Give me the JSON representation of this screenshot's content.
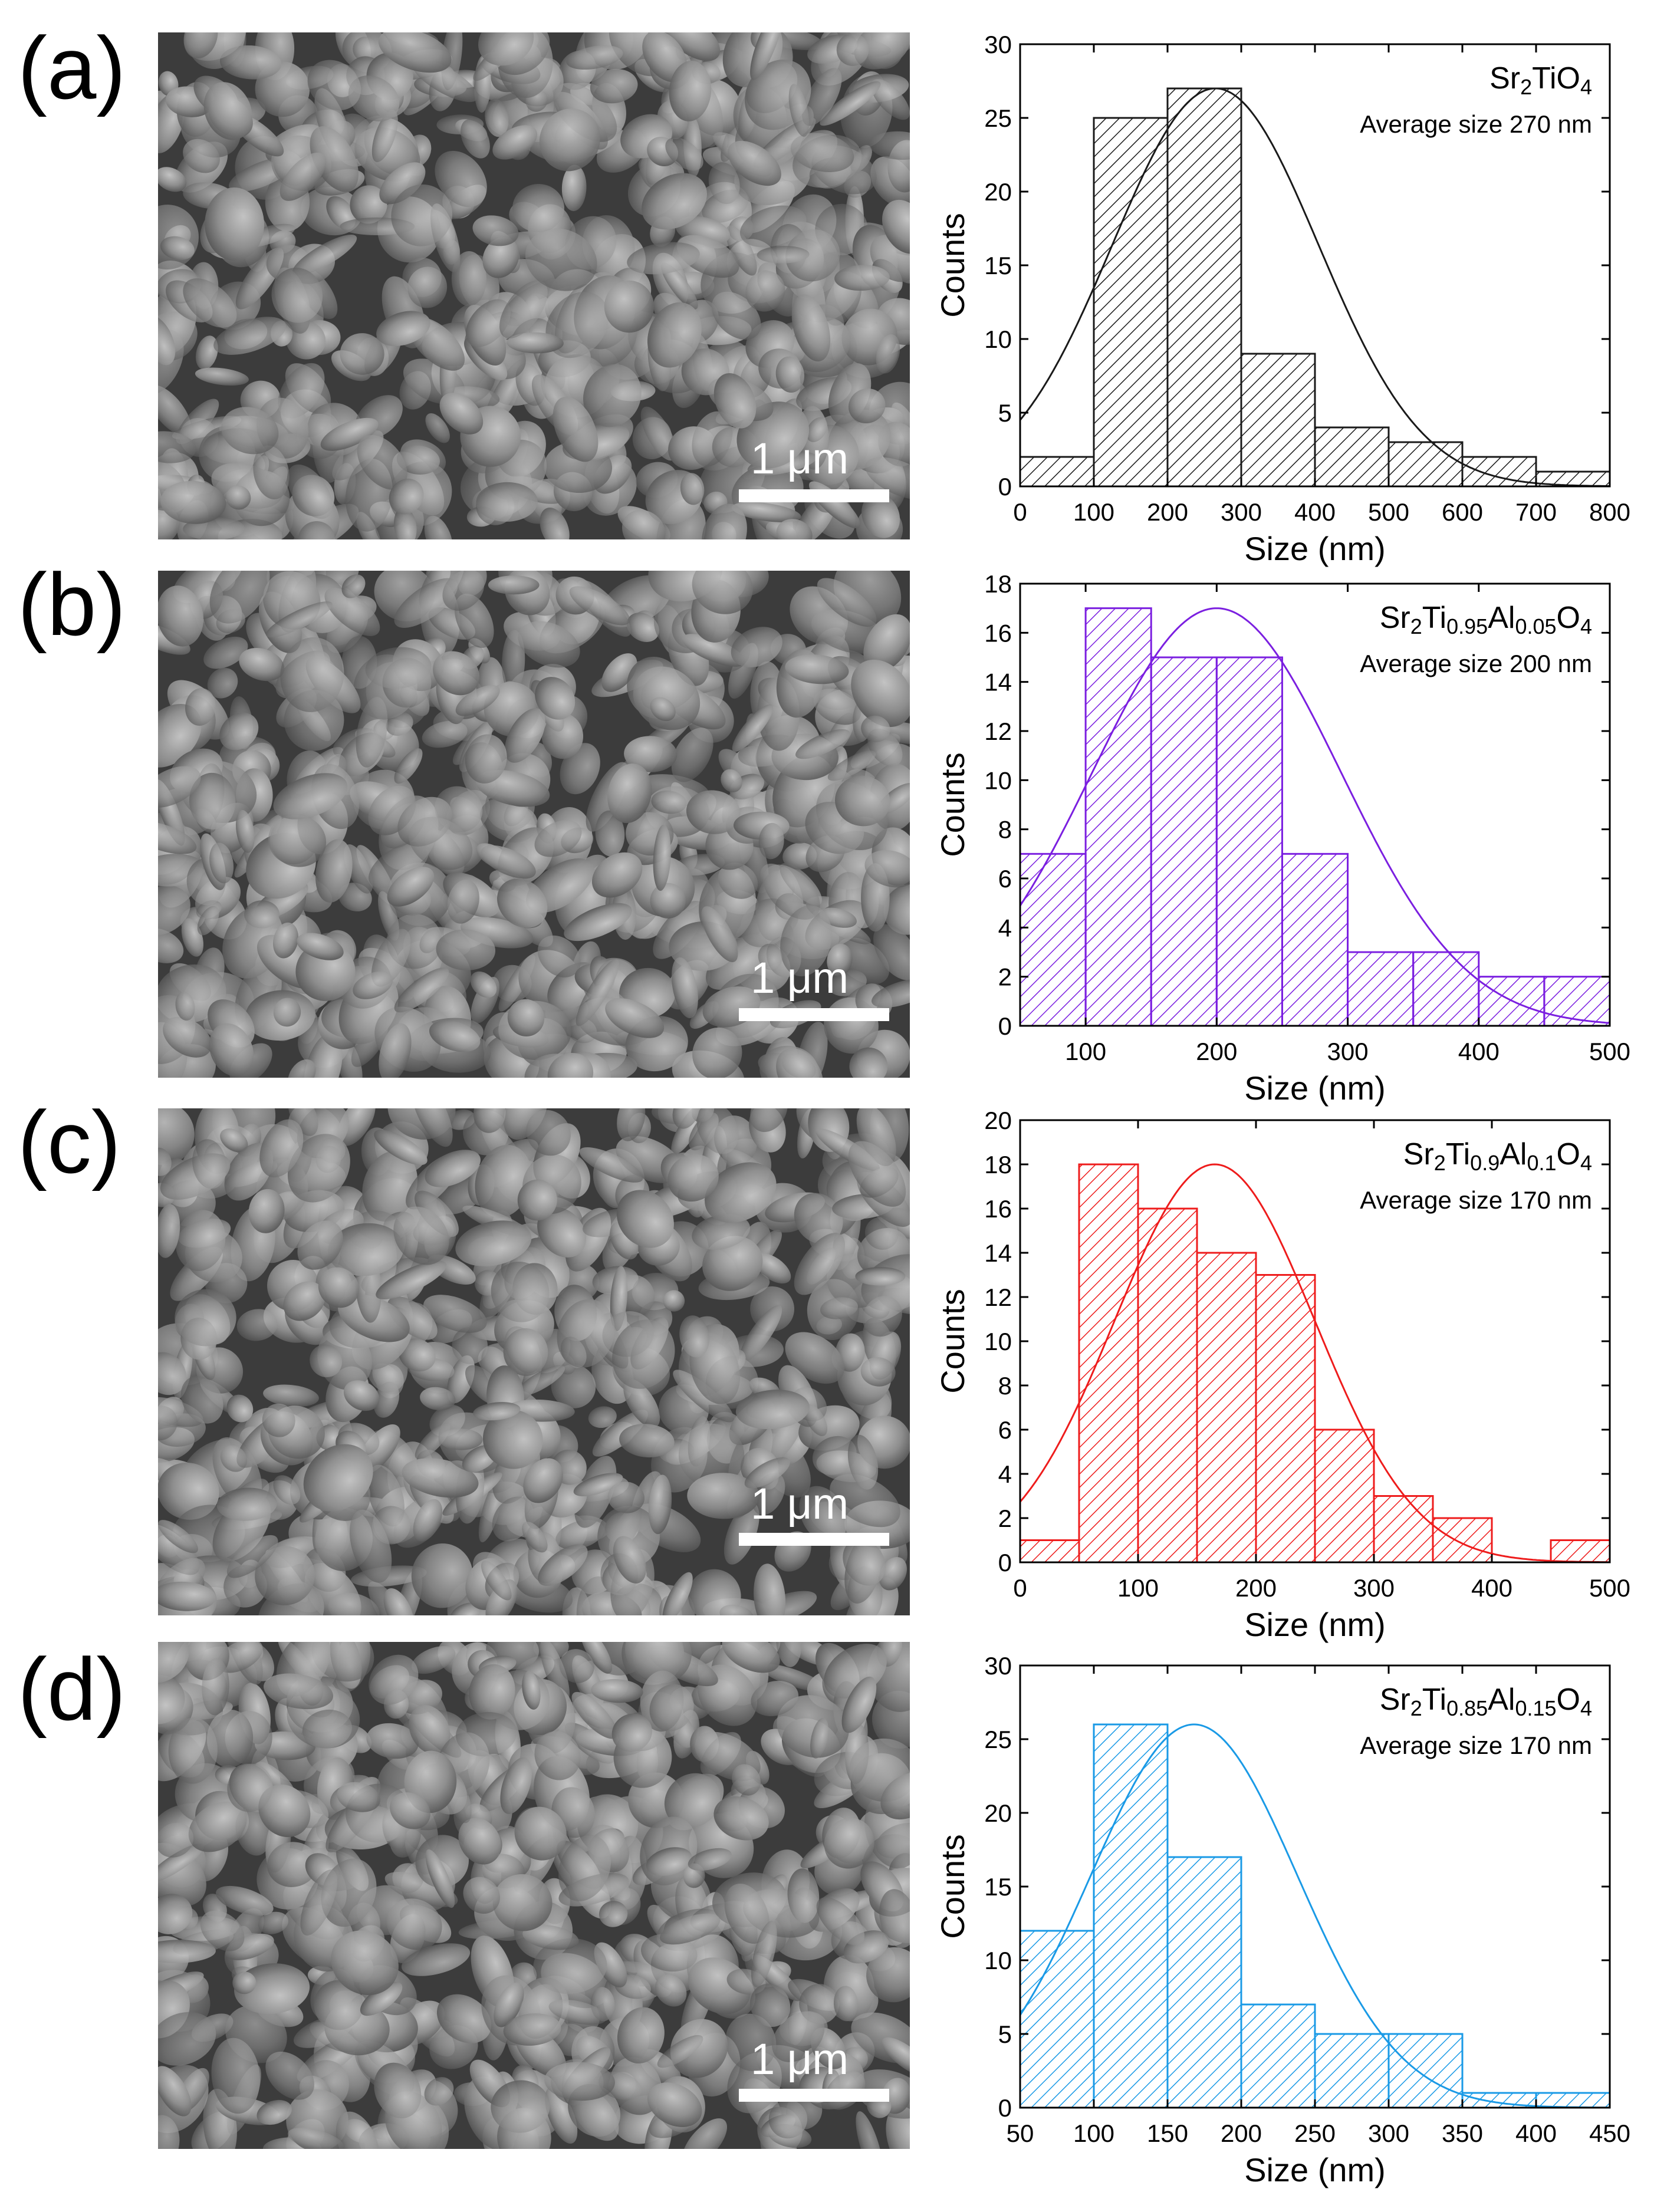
{
  "panels": [
    {
      "label": "(a)",
      "scale_bar": "1 μm"
    },
    {
      "label": "(b)",
      "scale_bar": "1 μm"
    },
    {
      "label": "(c)",
      "scale_bar": "1 μm"
    },
    {
      "label": "(d)",
      "scale_bar": "1 μm"
    }
  ],
  "chart_data": [
    {
      "type": "bar",
      "panel": "(a)",
      "title": "",
      "annotation": {
        "formula": [
          [
            "Sr",
            "n"
          ],
          [
            "2",
            "s"
          ],
          [
            "TiO",
            "n"
          ],
          [
            "4",
            "s"
          ]
        ],
        "text": "Average size 270 nm"
      },
      "xlabel": "Size (nm)",
      "ylabel": "Counts",
      "xlim": [
        0,
        800
      ],
      "ylim": [
        0,
        30
      ],
      "xticks": [
        0,
        100,
        200,
        300,
        400,
        500,
        600,
        700,
        800
      ],
      "yticks": [
        0,
        5,
        10,
        15,
        20,
        25,
        30
      ],
      "bin_width": 100,
      "bins": [
        {
          "start": 0,
          "count": 2
        },
        {
          "start": 100,
          "count": 25
        },
        {
          "start": 200,
          "count": 27
        },
        {
          "start": 300,
          "count": 9
        },
        {
          "start": 400,
          "count": 4
        },
        {
          "start": 500,
          "count": 3
        },
        {
          "start": 600,
          "count": 2
        },
        {
          "start": 700,
          "count": 1
        }
      ],
      "fit": {
        "type": "gaussian",
        "center": 265,
        "peak": 27,
        "sigma": 140
      },
      "color": "#1a1a1a",
      "grid": false
    },
    {
      "type": "bar",
      "panel": "(b)",
      "title": "",
      "annotation": {
        "formula": [
          [
            "Sr",
            "n"
          ],
          [
            "2",
            "s"
          ],
          [
            "Ti",
            "n"
          ],
          [
            "0.95",
            "s"
          ],
          [
            "Al",
            "n"
          ],
          [
            "0.05",
            "s"
          ],
          [
            "O",
            "n"
          ],
          [
            "4",
            "s"
          ]
        ],
        "text": "Average size 200 nm"
      },
      "xlabel": "Size (nm)",
      "ylabel": "Counts",
      "xlim": [
        50,
        500
      ],
      "ylim": [
        0,
        18
      ],
      "xticks": [
        100,
        200,
        300,
        400,
        500
      ],
      "yticks": [
        0,
        2,
        4,
        6,
        8,
        10,
        12,
        14,
        16,
        18
      ],
      "bin_width": 50,
      "bins": [
        {
          "start": 50,
          "count": 7
        },
        {
          "start": 100,
          "count": 17
        },
        {
          "start": 150,
          "count": 15
        },
        {
          "start": 200,
          "count": 15
        },
        {
          "start": 250,
          "count": 7
        },
        {
          "start": 300,
          "count": 3
        },
        {
          "start": 350,
          "count": 3
        },
        {
          "start": 400,
          "count": 2
        },
        {
          "start": 450,
          "count": 2
        }
      ],
      "fit": {
        "type": "gaussian",
        "center": 200,
        "peak": 17,
        "sigma": 95
      },
      "color": "#7b1fe0",
      "grid": false
    },
    {
      "type": "bar",
      "panel": "(c)",
      "title": "",
      "annotation": {
        "formula": [
          [
            "Sr",
            "n"
          ],
          [
            "2",
            "s"
          ],
          [
            "Ti",
            "n"
          ],
          [
            "0.9",
            "s"
          ],
          [
            "Al",
            "n"
          ],
          [
            "0.1",
            "s"
          ],
          [
            "O",
            "n"
          ],
          [
            "4",
            "s"
          ]
        ],
        "text": "Average size 170 nm"
      },
      "xlabel": "Size (nm)",
      "ylabel": "Counts",
      "xlim": [
        0,
        500
      ],
      "ylim": [
        0,
        20
      ],
      "xticks": [
        0,
        100,
        200,
        300,
        400,
        500
      ],
      "yticks": [
        0,
        2,
        4,
        6,
        8,
        10,
        12,
        14,
        16,
        18,
        20
      ],
      "bin_width": 50,
      "bins": [
        {
          "start": 0,
          "count": 1
        },
        {
          "start": 50,
          "count": 18
        },
        {
          "start": 100,
          "count": 16
        },
        {
          "start": 150,
          "count": 14
        },
        {
          "start": 200,
          "count": 13
        },
        {
          "start": 250,
          "count": 6
        },
        {
          "start": 300,
          "count": 3
        },
        {
          "start": 350,
          "count": 2
        },
        {
          "start": 400,
          "count": 0
        },
        {
          "start": 450,
          "count": 1
        }
      ],
      "fit": {
        "type": "gaussian",
        "center": 165,
        "peak": 18,
        "sigma": 85
      },
      "color": "#ee1c1c",
      "grid": false
    },
    {
      "type": "bar",
      "panel": "(d)",
      "title": "",
      "annotation": {
        "formula": [
          [
            "Sr",
            "n"
          ],
          [
            "2",
            "s"
          ],
          [
            "Ti",
            "n"
          ],
          [
            "0.85",
            "s"
          ],
          [
            "Al",
            "n"
          ],
          [
            "0.15",
            "s"
          ],
          [
            "O",
            "n"
          ],
          [
            "4",
            "s"
          ]
        ],
        "text": "Average size 170 nm"
      },
      "xlabel": "Size (nm)",
      "ylabel": "Counts",
      "xlim": [
        50,
        450
      ],
      "ylim": [
        0,
        30
      ],
      "xticks": [
        50,
        100,
        150,
        200,
        250,
        300,
        350,
        400,
        450
      ],
      "yticks": [
        0,
        5,
        10,
        15,
        20,
        25,
        30
      ],
      "bin_width": 50,
      "bins": [
        {
          "start": 50,
          "count": 12
        },
        {
          "start": 100,
          "count": 26
        },
        {
          "start": 150,
          "count": 17
        },
        {
          "start": 200,
          "count": 7
        },
        {
          "start": 250,
          "count": 5
        },
        {
          "start": 300,
          "count": 5
        },
        {
          "start": 350,
          "count": 1
        },
        {
          "start": 400,
          "count": 1
        }
      ],
      "fit": {
        "type": "gaussian",
        "center": 168,
        "peak": 26,
        "sigma": 70
      },
      "color": "#1a9ae6",
      "grid": false
    }
  ]
}
